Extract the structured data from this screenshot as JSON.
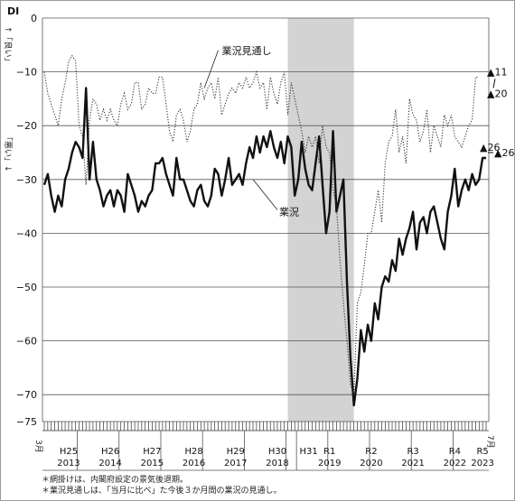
{
  "chart_data": {
    "type": "line",
    "ylabel": "DI",
    "ylim": [
      -75,
      0
    ],
    "yticks": [
      0,
      -10,
      -20,
      -30,
      -40,
      -50,
      -60,
      -70,
      -75
    ],
    "ytick_labels": [
      "0",
      "−10",
      "−20",
      "−30",
      "−40",
      "−50",
      "−60",
      "−70",
      "−75"
    ],
    "y_side_labels": {
      "upper": "↑「良い」",
      "lower": "「悪い」↓"
    },
    "x_start_label": "3月",
    "x_end_label": "7月",
    "x_axis_labels": [
      {
        "era": "H25",
        "year": "2013",
        "pos": 7
      },
      {
        "era": "H26",
        "year": "2014",
        "pos": 19
      },
      {
        "era": "H27",
        "year": "2015",
        "pos": 31
      },
      {
        "era": "H28",
        "year": "2016",
        "pos": 43
      },
      {
        "era": "H29",
        "year": "2017",
        "pos": 55
      },
      {
        "era": "H30",
        "year": "2018",
        "pos": 67
      },
      {
        "era": "H31",
        "year": "",
        "pos": 76
      },
      {
        "era": "R1",
        "year": "2019",
        "pos": 82
      },
      {
        "era": "R2",
        "year": "2020",
        "pos": 94
      },
      {
        "era": "R3",
        "year": "2021",
        "pos": 106
      },
      {
        "era": "R4",
        "year": "2022",
        "pos": 118
      },
      {
        "era": "R5",
        "year": "2023",
        "pos": 126
      }
    ],
    "year_boundaries": [
      10,
      22,
      34,
      46,
      58,
      70,
      73,
      82,
      94,
      106,
      118
    ],
    "recession_shading": {
      "from": 70,
      "to": 89
    },
    "series": [
      {
        "name": "業況",
        "style": "solid",
        "values": [
          -31,
          -29,
          -33,
          -36,
          -33,
          -35,
          -30,
          -28,
          -25,
          -23,
          -24,
          -26,
          -13,
          -30,
          -23,
          -30,
          -32,
          -35,
          -33,
          -32,
          -35,
          -32,
          -33,
          -36,
          -29,
          -31,
          -33,
          -36,
          -34,
          -35,
          -33,
          -32,
          -27,
          -27,
          -26,
          -29,
          -31,
          -33,
          -26,
          -30,
          -30,
          -32,
          -34,
          -35,
          -32,
          -31,
          -34,
          -35,
          -33,
          -28,
          -29,
          -33,
          -30,
          -26,
          -31,
          -30,
          -29,
          -31,
          -27,
          -24,
          -26,
          -22,
          -25,
          -22,
          -24,
          -21,
          -24,
          -26,
          -23,
          -27,
          -22,
          -24,
          -33,
          -30,
          -23,
          -28,
          -31,
          -32,
          -27,
          -22,
          -31,
          -40,
          -36,
          -21,
          -36,
          -33,
          -30,
          -49,
          -63,
          -72,
          -67,
          -58,
          -62,
          -57,
          -60,
          -53,
          -56,
          -50,
          -48,
          -49,
          -45,
          -47,
          -41,
          -44,
          -41,
          -39,
          -36,
          -43,
          -38,
          -37,
          -40,
          -36,
          -35,
          -38,
          -41,
          -43,
          -36,
          -33,
          -28,
          -35,
          -32,
          -30,
          -32,
          -29,
          -31,
          -30,
          -26,
          -26
        ]
      },
      {
        "name": "業況見通し",
        "style": "dotted",
        "values": [
          -10,
          -14,
          -16,
          -18,
          -20,
          -15,
          -12,
          -8,
          -7,
          -8,
          -20,
          -22,
          -31,
          -19,
          -15,
          -16,
          -19,
          -17,
          -19,
          -17,
          -19,
          -20,
          -16,
          -14,
          -17,
          -16,
          -12,
          -12,
          -17,
          -16,
          -13,
          -14,
          -14,
          -11,
          -11,
          -16,
          -21,
          -23,
          -18,
          -17,
          -19,
          -23,
          -21,
          -17,
          -16,
          -12,
          -15,
          -13,
          -12,
          -15,
          -11,
          -18,
          -16,
          -14,
          -13,
          -14,
          -12,
          -13,
          -11,
          -13,
          -12,
          -10,
          -13,
          -12,
          -17,
          -11,
          -14,
          -16,
          -12,
          -10,
          -18,
          -12,
          -15,
          -18,
          -21,
          -25,
          -22,
          -24,
          -22,
          -27,
          -20,
          -24,
          -25,
          -32,
          -35,
          -45,
          -53,
          -60,
          -68,
          -70,
          -53,
          -51,
          -46,
          -40,
          -40,
          -36,
          -32,
          -38,
          -27,
          -23,
          -22,
          -17,
          -25,
          -22,
          -27,
          -15,
          -18,
          -19,
          -23,
          -21,
          -17,
          -25,
          -20,
          -22,
          -24,
          -18,
          -20,
          -18,
          -22,
          -23,
          -24,
          -22,
          -20,
          -19,
          -11,
          -11
        ]
      }
    ],
    "annotations": [
      {
        "text": "業況見通し",
        "x": 50,
        "y": -6
      },
      {
        "text": "業況",
        "x": 67,
        "y": -36
      },
      {
        "text": "▲11",
        "x": 129,
        "y": -10
      },
      {
        "text": "▲20",
        "x": 129,
        "y": -14
      },
      {
        "text": "▲26",
        "x": 128,
        "y": -24
      },
      {
        "text": "▲26",
        "x": 130,
        "y": -25
      }
    ],
    "footnotes": [
      "＊網掛けは、内閣府設定の景気後退期。",
      "＊業況見通しは、「当月に比べ」た今後３か月間の業況の見通し。"
    ]
  }
}
